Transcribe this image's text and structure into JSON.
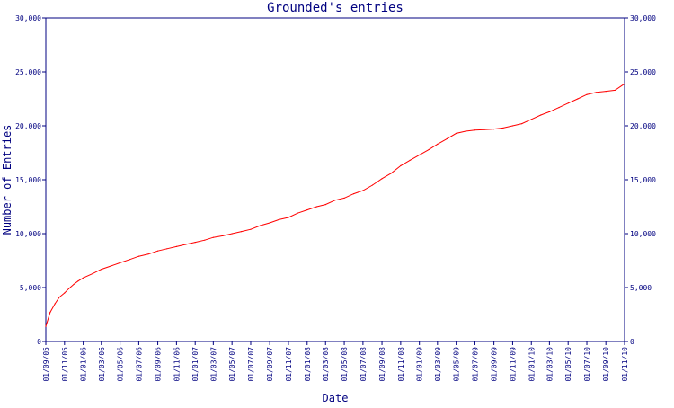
{
  "chart_data": {
    "type": "line",
    "title": "Grounded's entries",
    "xlabel": "Date",
    "ylabel": "Number of Entries",
    "ylim": [
      0,
      30000
    ],
    "grid": false,
    "legend": "none",
    "colors": {
      "axis": "#000080",
      "text": "#000080",
      "line": "#ff0000",
      "background": "#ffffff"
    },
    "y_ticks": [
      0,
      5000,
      10000,
      15000,
      20000,
      25000,
      30000
    ],
    "y_tick_labels": [
      "0",
      "5,000",
      "10,000",
      "15,000",
      "20,000",
      "25,000",
      "30,000"
    ],
    "x_tick_labels": [
      "01/09/05",
      "01/11/05",
      "01/01/06",
      "01/03/06",
      "01/05/06",
      "01/07/06",
      "01/09/06",
      "01/11/06",
      "01/01/07",
      "01/03/07",
      "01/05/07",
      "01/07/07",
      "01/09/07",
      "01/11/07",
      "01/01/08",
      "01/03/08",
      "01/05/08",
      "01/07/08",
      "01/09/08",
      "01/11/08",
      "01/01/09",
      "01/03/09",
      "01/05/09",
      "01/07/09",
      "01/09/09",
      "01/11/09",
      "01/01/10",
      "01/03/10",
      "01/05/10",
      "01/07/10",
      "01/09/10",
      "01/11/10"
    ],
    "series": [
      {
        "x": [
          "01/09/05",
          "15/09/05",
          "01/10/05",
          "15/10/05",
          "01/11/05",
          "15/11/05",
          "01/12/05",
          "15/12/05",
          "01/01/06",
          "01/02/06",
          "01/03/06",
          "01/04/06",
          "01/05/06",
          "01/06/06",
          "01/07/06",
          "01/08/06",
          "01/09/06",
          "01/10/06",
          "01/11/06",
          "01/12/06",
          "01/01/07",
          "01/02/07",
          "01/03/07",
          "01/04/07",
          "01/05/07",
          "01/06/07",
          "01/07/07",
          "01/08/07",
          "01/09/07",
          "01/10/07",
          "01/11/07",
          "01/12/07",
          "01/01/08",
          "01/02/08",
          "01/03/08",
          "01/04/08",
          "01/05/08",
          "01/06/08",
          "01/07/08",
          "01/08/08",
          "01/09/08",
          "01/10/08",
          "01/11/08",
          "01/12/08",
          "01/01/09",
          "01/02/09",
          "01/03/09",
          "01/04/09",
          "01/05/09",
          "01/06/09",
          "01/07/09",
          "01/08/09",
          "01/09/09",
          "01/10/09",
          "01/11/09",
          "01/12/09",
          "01/01/10",
          "01/02/10",
          "01/03/10",
          "01/04/10",
          "01/05/10",
          "01/06/10",
          "01/07/10",
          "01/08/10",
          "01/09/10",
          "01/10/10",
          "01/11/10"
        ],
        "values": [
          1400,
          2700,
          3500,
          4100,
          4500,
          4900,
          5300,
          5600,
          5900,
          6300,
          6700,
          7000,
          7300,
          7600,
          7900,
          8100,
          8400,
          8600,
          8800,
          9000,
          9200,
          9400,
          9650,
          9800,
          10000,
          10200,
          10400,
          10750,
          11000,
          11300,
          11500,
          11900,
          12200,
          12500,
          12700,
          13100,
          13300,
          13700,
          14000,
          14500,
          15100,
          15600,
          16300,
          16800,
          17300,
          17800,
          18300,
          18800,
          19300,
          19500,
          19600,
          19650,
          19700,
          19800,
          20000,
          20200,
          20600,
          21000,
          21300,
          21700,
          22100,
          22500,
          22900,
          23100,
          23200,
          23300,
          23900
        ]
      }
    ]
  }
}
